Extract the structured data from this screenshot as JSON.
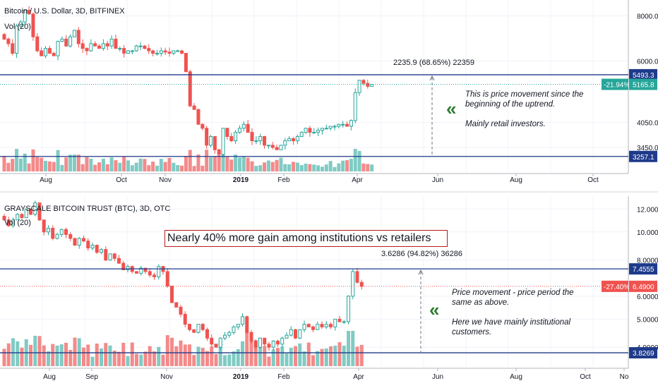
{
  "colors": {
    "up": "#26a69a",
    "down": "#ef5350",
    "vol_up": "#80cbc4",
    "vol_down": "#f48a8a",
    "hline": "#1e3a8a",
    "axis_text": "#131722",
    "grid": "#f0f3fa",
    "note_arrow": "#2e7d32"
  },
  "panels": [
    {
      "title": "Bitcoin / U.S. Dollar, 3D, BITFINEX",
      "vol_label": "Vol (20)",
      "y_ticks": [
        "8000.0",
        "6000.0",
        "4050.0",
        "3450.0"
      ],
      "y_tick_values": [
        8000,
        6000,
        4050,
        3450
      ],
      "x_ticks": [
        "Aug",
        "Oct",
        "Nov",
        "2019",
        "Feb",
        "Apr",
        "Jun",
        "Aug",
        "Oct"
      ],
      "hline_labels": [
        "5493.3",
        "3257.1"
      ],
      "hline_values": [
        5493.3,
        3257.1
      ],
      "last_change": "-21.94%",
      "last_price": "5165.8",
      "last_value": 5165.8,
      "measure_label": "2235.9 (68.65%) 22359",
      "note_lines": [
        "This is price movement since the",
        "beginning of the uptrend.",
        "",
        "Mainly retail investors."
      ],
      "note_arrow": "«"
    },
    {
      "title": "GRAYSCALE BITCOIN TRUST (BTC), 3D, OTC",
      "vol_label": "Vol (20)",
      "y_ticks": [
        "12.0000",
        "10.0000",
        "8.0000",
        "6.0000",
        "5.0000",
        "4.0000"
      ],
      "y_tick_values": [
        12,
        10,
        8,
        6,
        5,
        4
      ],
      "x_ticks": [
        "Aug",
        "Sep",
        "Nov",
        "2019",
        "Feb",
        "Apr",
        "Jun",
        "Aug",
        "Oct",
        "No"
      ],
      "hline_labels": [
        "7.4555",
        "3.8269"
      ],
      "hline_values": [
        7.4555,
        3.8269
      ],
      "last_change": "-27.40%",
      "last_price": "6.4900",
      "last_value": 6.49,
      "measure_label": "3.6286 (94.82%) 36286",
      "headline": "Nearly 40% more gain among institutions vs retailers",
      "note_lines": [
        "Price movement - price period the",
        "same as above.",
        "",
        "Here we have mainly institutional",
        "customers."
      ],
      "note_arrow": "«"
    }
  ],
  "chart_data": [
    {
      "type": "candlestick",
      "title": "Bitcoin / U.S. Dollar, 3D, BITFINEX",
      "ylim": [
        3000,
        8700
      ],
      "scale": "log",
      "x_range": [
        "Jul",
        "Nov"
      ],
      "grid": true,
      "close_series": [
        6900,
        6700,
        6300,
        7500,
        7700,
        8300,
        8100,
        7000,
        6400,
        6200,
        6500,
        6300,
        6200,
        6800,
        6900,
        6600,
        7000,
        7300,
        6700,
        6500,
        6400,
        6700,
        6600,
        6500,
        6700,
        6600,
        6900,
        6500,
        6500,
        6300,
        6400,
        6400,
        6600,
        6600,
        6500,
        6400,
        6300,
        6300,
        6400,
        6350,
        6300,
        6400,
        6400,
        6300,
        5600,
        4500,
        4400,
        4000,
        3900,
        3500,
        3700,
        3400,
        3300,
        3900,
        3700,
        3600,
        3800,
        3900,
        4000,
        3800,
        3600,
        3600,
        3700,
        3500,
        3500,
        3450,
        3400,
        3500,
        3600,
        3650,
        3600,
        3700,
        3800,
        3900,
        3800,
        3800,
        3850,
        3900,
        3900,
        3950,
        3950,
        4000,
        4000,
        3950,
        4100,
        4900,
        5300,
        5200,
        5100,
        5165.8
      ],
      "hlines": [
        5493.3,
        3257.1
      ],
      "measure": {
        "from": 3257.1,
        "to": 5493.3,
        "label": "2235.9 (68.65%) 22359"
      }
    },
    {
      "type": "candlestick",
      "title": "GRAYSCALE BITCOIN TRUST (BTC), 3D, OTC",
      "ylim": [
        3.5,
        13.0
      ],
      "scale": "log",
      "x_range": [
        "Jul",
        "Nov"
      ],
      "grid": true,
      "close_series": [
        11.0,
        10.5,
        11.0,
        11.5,
        11.2,
        12.0,
        11.5,
        12.6,
        11.0,
        10.0,
        10.3,
        9.5,
        9.8,
        10.2,
        9.8,
        9.5,
        9.0,
        9.5,
        9.3,
        8.8,
        9.0,
        8.5,
        8.7,
        8.0,
        8.4,
        8.1,
        7.8,
        7.4,
        7.6,
        7.3,
        7.2,
        7.5,
        7.3,
        7.1,
        7.0,
        7.6,
        7.3,
        6.5,
        5.7,
        5.5,
        5.2,
        4.8,
        4.6,
        4.5,
        4.8,
        4.6,
        4.3,
        4.1,
        4.0,
        4.3,
        4.4,
        4.5,
        4.7,
        4.8,
        5.1,
        4.5,
        4.2,
        4.0,
        4.3,
        4.1,
        4.0,
        4.2,
        4.1,
        4.3,
        4.4,
        4.6,
        4.3,
        4.6,
        4.8,
        4.7,
        4.6,
        4.8,
        4.7,
        4.8,
        4.7,
        5.0,
        4.9,
        4.9,
        6.0,
        7.3,
        6.7,
        6.49
      ],
      "hlines": [
        7.4555,
        3.8269
      ],
      "measure": {
        "from": 3.8269,
        "to": 7.4555,
        "label": "3.6286 (94.82%) 36286"
      }
    }
  ]
}
